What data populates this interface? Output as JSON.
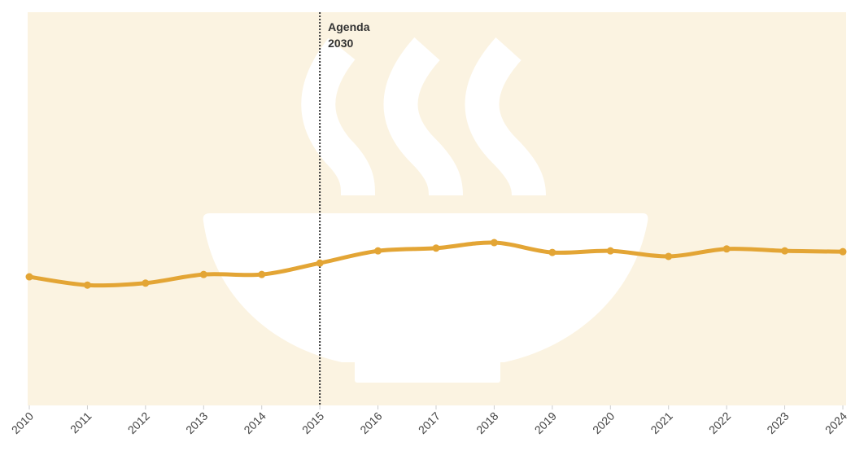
{
  "chart_data": {
    "type": "line",
    "x": [
      2010,
      2011,
      2012,
      2013,
      2014,
      2015,
      2016,
      2017,
      2018,
      2019,
      2020,
      2021,
      2022,
      2023,
      2024
    ],
    "series": [
      {
        "color": "#e3a535",
        "values": [
          32.7,
          30.6,
          31.1,
          33.3,
          33.3,
          36.2,
          39.3,
          40.0,
          41.4,
          38.9,
          39.3,
          37.9,
          39.8,
          39.3,
          39.1
        ]
      }
    ],
    "xlim": [
      2010,
      2024
    ],
    "xticks": [
      2010,
      2011,
      2012,
      2013,
      2014,
      2015,
      2016,
      2017,
      2018,
      2019,
      2020,
      2021,
      2022,
      2023,
      2024
    ],
    "ylim": [
      0,
      100
    ],
    "annotation": {
      "x": 2015,
      "lines": [
        "Agenda",
        "2030"
      ]
    }
  }
}
